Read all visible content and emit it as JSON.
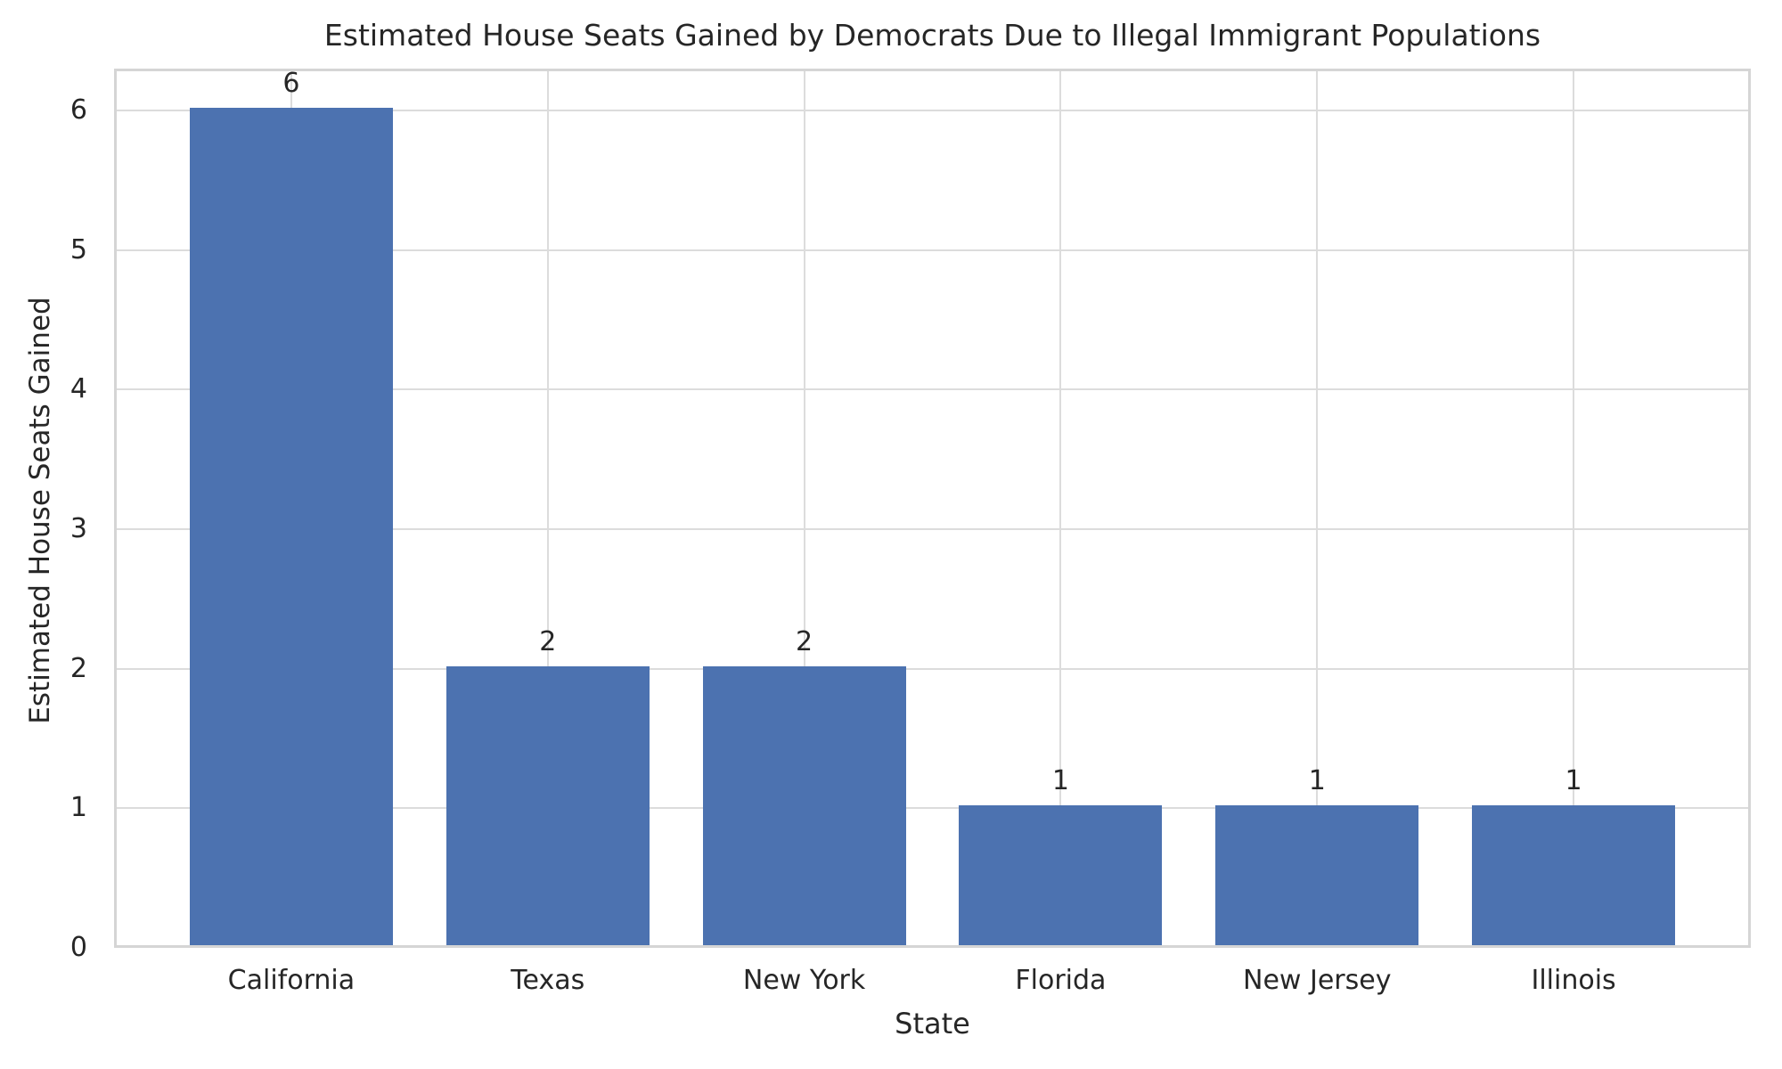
{
  "chart_data": {
    "type": "bar",
    "title": "Estimated House Seats Gained by Democrats Due to Illegal Immigrant Populations",
    "xlabel": "State",
    "ylabel": "Estimated House Seats Gained",
    "categories": [
      "California",
      "Texas",
      "New York",
      "Florida",
      "New Jersey",
      "Illinois"
    ],
    "values": [
      6,
      2,
      2,
      1,
      1,
      1
    ],
    "bar_value_labels": [
      "6",
      "2",
      "2",
      "1",
      "1",
      "1"
    ],
    "yticks": [
      "0",
      "1",
      "2",
      "3",
      "4",
      "5",
      "6"
    ],
    "ylim": [
      0,
      6.3
    ],
    "grid": "both",
    "legend": "none",
    "colors": {
      "bar": "#4C72B0",
      "grid": "#DCDCDC",
      "spine": "#D5D5D5",
      "text": "#262626",
      "background": "#FFFFFF"
    }
  }
}
